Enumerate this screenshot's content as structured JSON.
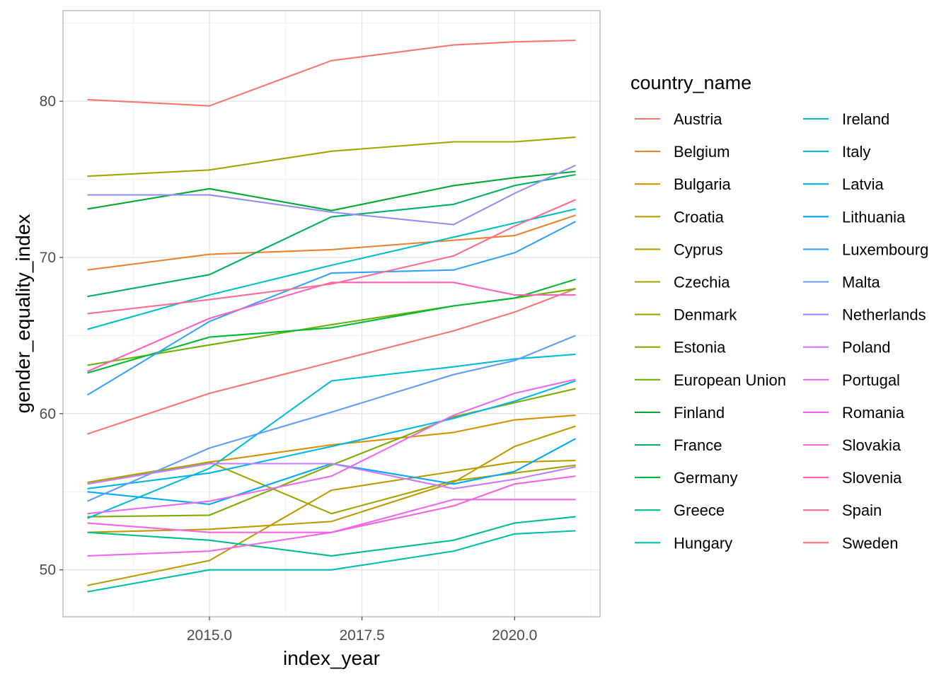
{
  "chart_data": {
    "type": "line",
    "xlabel": "index_year",
    "ylabel": "gender_equality_index",
    "xlim": [
      2012.6,
      2021.4
    ],
    "ylim": [
      47,
      85.8
    ],
    "x_ticks": [
      2015,
      2017.5,
      2020
    ],
    "x_tick_labels": [
      "2015.0",
      "2017.5",
      "2020.0"
    ],
    "y_ticks": [
      50,
      60,
      70,
      80
    ],
    "y_tick_labels": [
      "50",
      "60",
      "70",
      "80"
    ],
    "grid": true,
    "legend": {
      "title": "country_name",
      "placement": "right",
      "columns": 2
    },
    "x": [
      2013,
      2015,
      2017,
      2019,
      2020,
      2021
    ],
    "series": [
      {
        "name": "Austria",
        "color": "#F8766D",
        "values": [
          58.7,
          61.3,
          63.3,
          65.3,
          66.5,
          68.0
        ]
      },
      {
        "name": "Belgium",
        "color": "#EA8331",
        "values": [
          69.2,
          70.2,
          70.5,
          71.1,
          71.4,
          72.7
        ]
      },
      {
        "name": "Bulgaria",
        "color": "#D89000",
        "values": [
          55.5,
          56.9,
          58.0,
          58.8,
          59.6,
          59.9
        ]
      },
      {
        "name": "Croatia",
        "color": "#C09B00",
        "values": [
          52.4,
          52.6,
          53.1,
          55.6,
          57.9,
          59.2
        ]
      },
      {
        "name": "Cyprus",
        "color": "#C09B00",
        "values": [
          49.0,
          50.6,
          55.1,
          56.3,
          56.9,
          57.0
        ]
      },
      {
        "name": "Czechia",
        "color": "#A3A500",
        "values": [
          55.6,
          56.9,
          53.6,
          55.7,
          56.2,
          56.7
        ]
      },
      {
        "name": "Denmark",
        "color": "#A3A500",
        "values": [
          75.2,
          75.6,
          76.8,
          77.4,
          77.4,
          77.7
        ]
      },
      {
        "name": "Estonia",
        "color": "#7CAE00",
        "values": [
          53.4,
          53.5,
          56.7,
          59.8,
          60.7,
          61.6
        ]
      },
      {
        "name": "European Union",
        "color": "#6BB100",
        "values": [
          63.1,
          64.4,
          65.7,
          66.9,
          67.4,
          68.0
        ]
      },
      {
        "name": "Finland",
        "color": "#00A932",
        "values": [
          73.1,
          74.4,
          73.0,
          74.6,
          75.1,
          75.5
        ]
      },
      {
        "name": "France",
        "color": "#00B15E",
        "values": [
          67.5,
          68.9,
          72.6,
          73.4,
          74.6,
          75.3
        ]
      },
      {
        "name": "Germany",
        "color": "#00BA38",
        "values": [
          62.6,
          64.9,
          65.5,
          66.9,
          67.4,
          68.6
        ]
      },
      {
        "name": "Greece",
        "color": "#00BD8E",
        "values": [
          52.4,
          51.9,
          50.9,
          51.9,
          53.0,
          53.4
        ]
      },
      {
        "name": "Hungary",
        "color": "#00BFAE",
        "values": [
          48.6,
          50.0,
          50.0,
          51.2,
          52.3,
          52.5
        ]
      },
      {
        "name": "Ireland",
        "color": "#00BFC4",
        "values": [
          65.4,
          67.6,
          69.5,
          71.3,
          72.2,
          73.1
        ]
      },
      {
        "name": "Italy",
        "color": "#00BCD8",
        "values": [
          53.3,
          56.5,
          62.1,
          63.0,
          63.5,
          63.8
        ]
      },
      {
        "name": "Latvia",
        "color": "#00B5E9",
        "values": [
          55.2,
          56.2,
          57.9,
          59.7,
          60.8,
          62.1
        ]
      },
      {
        "name": "Lithuania",
        "color": "#00A9FF",
        "values": [
          55.0,
          54.2,
          56.8,
          55.5,
          56.3,
          58.4
        ]
      },
      {
        "name": "Luxembourg",
        "color": "#35A2FF",
        "values": [
          61.2,
          65.9,
          69.0,
          69.2,
          70.3,
          72.3
        ]
      },
      {
        "name": "Malta",
        "color": "#619CFF",
        "values": [
          54.4,
          57.8,
          60.1,
          62.5,
          63.4,
          65.0
        ]
      },
      {
        "name": "Netherlands",
        "color": "#9590FF",
        "values": [
          74.0,
          74.0,
          72.9,
          72.1,
          74.1,
          75.9
        ]
      },
      {
        "name": "Poland",
        "color": "#C77CFF",
        "values": [
          55.5,
          56.8,
          56.8,
          55.2,
          55.8,
          56.6
        ]
      },
      {
        "name": "Portugal",
        "color": "#E76BF3",
        "values": [
          53.6,
          54.4,
          56.0,
          59.9,
          61.3,
          62.2
        ]
      },
      {
        "name": "Romania",
        "color": "#ED68ED",
        "values": [
          50.9,
          51.2,
          52.4,
          54.5,
          54.5,
          54.5
        ]
      },
      {
        "name": "Slovakia",
        "color": "#F564E3",
        "values": [
          53.0,
          52.4,
          52.4,
          54.1,
          55.5,
          56.0
        ]
      },
      {
        "name": "Slovenia",
        "color": "#FF62BC",
        "values": [
          62.7,
          66.1,
          68.4,
          68.4,
          67.6,
          67.6
        ]
      },
      {
        "name": "Spain",
        "color": "#FF6C91",
        "values": [
          66.4,
          67.3,
          68.3,
          70.1,
          72.0,
          73.7
        ]
      },
      {
        "name": "Sweden",
        "color": "#F8766D",
        "values": [
          80.1,
          79.7,
          82.6,
          83.6,
          83.8,
          83.9
        ]
      }
    ]
  }
}
